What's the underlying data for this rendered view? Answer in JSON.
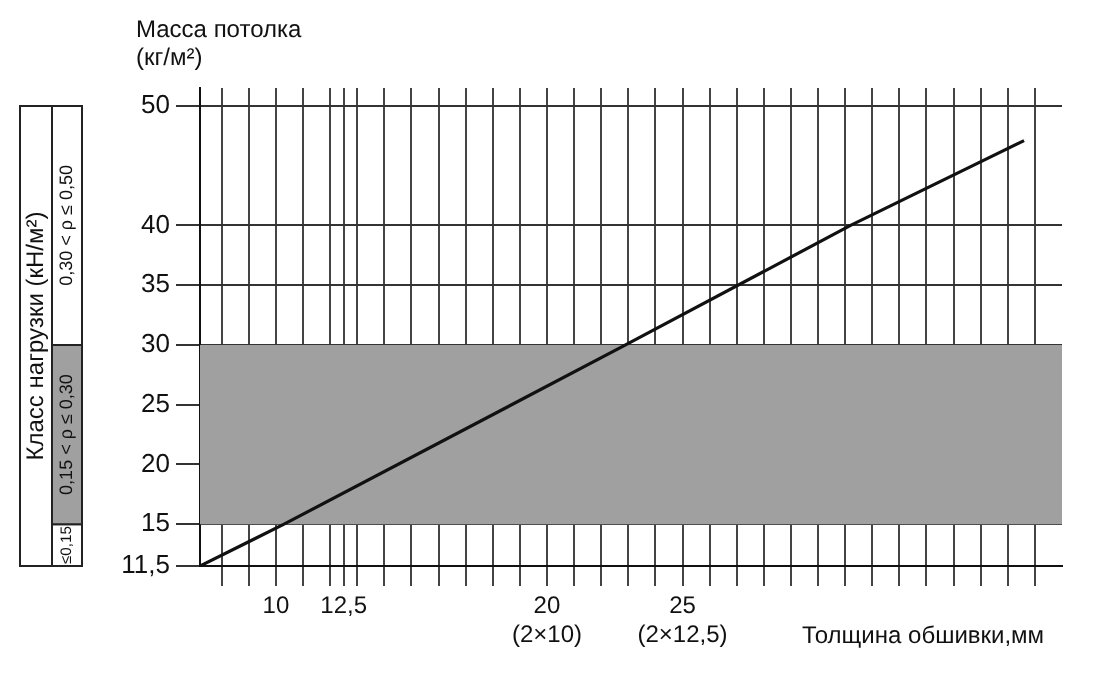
{
  "chart_data": {
    "type": "line",
    "xlabel": "Толщина обшивки,мм",
    "ylabel": "Масса потолка\n(кг/м²)",
    "legend_title": "Класс нагрузки (кН/м²)",
    "xlim": [
      7.2,
      39
    ],
    "ylim": [
      11.5,
      51.5
    ],
    "xticks": [
      {
        "value": 8,
        "label": null
      },
      {
        "value": 9,
        "label": null
      },
      10,
      {
        "value": 11,
        "label": null
      },
      {
        "value": 12,
        "label": null
      },
      {
        "value": 12.5,
        "label": "12,5"
      },
      {
        "value": 13,
        "label": null
      },
      {
        "value": 14,
        "label": null
      },
      {
        "value": 15,
        "label": null
      },
      {
        "value": 16,
        "label": null
      },
      {
        "value": 17,
        "label": null
      },
      {
        "value": 18,
        "label": null
      },
      {
        "value": 19,
        "label": null
      },
      {
        "value": 20,
        "label": "20\n(2×10)"
      },
      {
        "value": 21,
        "label": null
      },
      {
        "value": 22,
        "label": null
      },
      {
        "value": 23,
        "label": null
      },
      {
        "value": 24,
        "label": null
      },
      {
        "value": 25,
        "label": "25\n(2×12,5)"
      },
      {
        "value": 26,
        "label": null
      },
      {
        "value": 27,
        "label": null
      },
      {
        "value": 28,
        "label": null
      },
      {
        "value": 29,
        "label": null
      },
      {
        "value": 30,
        "label": null
      },
      {
        "value": 31,
        "label": null
      },
      {
        "value": 32,
        "label": null
      },
      {
        "value": 33,
        "label": null
      },
      {
        "value": 34,
        "label": null
      },
      {
        "value": 35,
        "label": null
      },
      {
        "value": 36,
        "label": null
      },
      {
        "value": 37,
        "label": null
      },
      {
        "value": 38,
        "label": null
      }
    ],
    "yticks": [
      {
        "value": 11.5,
        "label": "11,5"
      },
      15,
      20,
      25,
      30,
      35,
      40,
      50
    ],
    "grid": true,
    "marker": "none",
    "line_style": "solid",
    "legend": false,
    "series": [
      {
        "color": "#111111",
        "x": [
          7.2,
          10.3,
          22.9,
          31.2,
          37.6
        ],
        "values": [
          11.5,
          15,
          30,
          40,
          47.1
        ]
      }
    ],
    "bands": [
      {
        "axis": "y",
        "from": 15,
        "to": 30,
        "color": "#a0a0a0"
      }
    ],
    "annotations": [
      "≤0,15",
      "0,15 < ρ ≤ 0,30",
      "0,30 < ρ ≤ 0,50"
    ]
  }
}
